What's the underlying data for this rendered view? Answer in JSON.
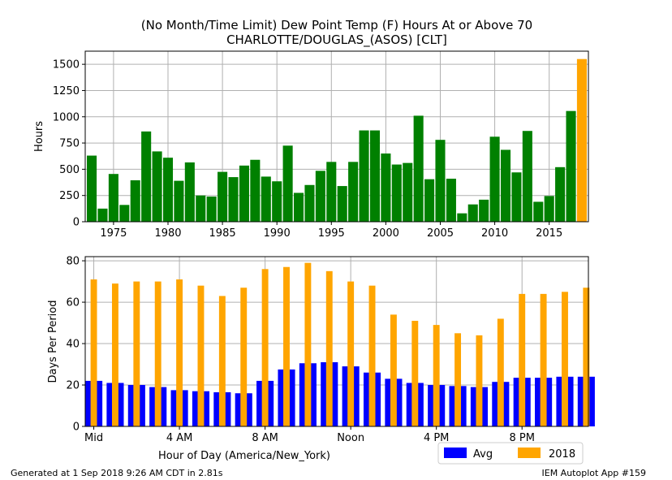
{
  "title_line1": "(No Month/Time Limit) Dew Point Temp (F) Hours At or Above 70",
  "title_line2": "CHARLOTTE/DOUGLAS_(ASOS) [CLT]",
  "footer_left": "Generated at 1 Sep 2018 9:26 AM CDT in 2.81s",
  "footer_right": "IEM Autoplot App #159",
  "colors": {
    "yearly": "#008000",
    "highlight": "#FFA500",
    "avg": "#0000FF",
    "current": "#FFA500",
    "grid": "#b0b0b0"
  },
  "chart_data": [
    {
      "type": "bar",
      "ylabel": "Hours",
      "xlabel": "",
      "ylim": [
        0,
        1625
      ],
      "xlim": [
        1972.4,
        2018.6
      ],
      "grid": true,
      "x_ticks": [
        {
          "value": 1975,
          "label": "1975"
        },
        {
          "value": 1980,
          "label": "1980"
        },
        {
          "value": 1985,
          "label": "1985"
        },
        {
          "value": 1990,
          "label": "1990"
        },
        {
          "value": 1995,
          "label": "1995"
        },
        {
          "value": 2000,
          "label": "2000"
        },
        {
          "value": 2005,
          "label": "2005"
        },
        {
          "value": 2010,
          "label": "2010"
        },
        {
          "value": 2015,
          "label": "2015"
        }
      ],
      "y_ticks": [
        {
          "value": 0,
          "label": "0"
        },
        {
          "value": 250,
          "label": "250"
        },
        {
          "value": 500,
          "label": "500"
        },
        {
          "value": 750,
          "label": "750"
        },
        {
          "value": 1000,
          "label": "1000"
        },
        {
          "value": 1250,
          "label": "1250"
        },
        {
          "value": 1500,
          "label": "1500"
        }
      ],
      "x": [
        1973,
        1974,
        1975,
        1976,
        1977,
        1978,
        1979,
        1980,
        1981,
        1982,
        1983,
        1984,
        1985,
        1986,
        1987,
        1988,
        1989,
        1990,
        1991,
        1992,
        1993,
        1994,
        1995,
        1996,
        1997,
        1998,
        1999,
        2000,
        2001,
        2002,
        2003,
        2004,
        2005,
        2006,
        2007,
        2008,
        2009,
        2010,
        2011,
        2012,
        2013,
        2014,
        2015,
        2016,
        2017,
        2018
      ],
      "values": [
        630,
        125,
        455,
        160,
        395,
        860,
        670,
        610,
        390,
        565,
        250,
        240,
        475,
        425,
        535,
        590,
        430,
        385,
        725,
        275,
        350,
        485,
        570,
        340,
        570,
        870,
        870,
        650,
        545,
        560,
        1010,
        405,
        780,
        410,
        80,
        165,
        210,
        810,
        685,
        470,
        865,
        190,
        245,
        520,
        1055,
        1550
      ],
      "highlight_x": 2018
    },
    {
      "type": "bar",
      "ylabel": "Days Per Period",
      "xlabel": "Hour of Day (America/New_York)",
      "ylim": [
        0,
        82
      ],
      "xlim": [
        -0.4,
        23.1
      ],
      "grid": true,
      "legend_position": "below-right",
      "x_ticks": [
        {
          "value": 0,
          "label": "Mid"
        },
        {
          "value": 4,
          "label": "4 AM"
        },
        {
          "value": 8,
          "label": "8 AM"
        },
        {
          "value": 12,
          "label": "Noon"
        },
        {
          "value": 16,
          "label": "4 PM"
        },
        {
          "value": 20,
          "label": "8 PM"
        }
      ],
      "y_ticks": [
        {
          "value": 0,
          "label": "0"
        },
        {
          "value": 20,
          "label": "20"
        },
        {
          "value": 40,
          "label": "40"
        },
        {
          "value": 60,
          "label": "60"
        },
        {
          "value": 80,
          "label": "80"
        }
      ],
      "x": [
        0,
        1,
        2,
        3,
        4,
        5,
        6,
        7,
        8,
        9,
        10,
        11,
        12,
        13,
        14,
        15,
        16,
        17,
        18,
        19,
        20,
        21,
        22,
        23
      ],
      "series": [
        {
          "name": "Avg",
          "values": [
            22,
            21,
            20,
            19,
            17.5,
            17,
            16.5,
            16,
            22,
            27.5,
            30.5,
            31,
            29,
            26,
            23,
            21,
            20,
            19.5,
            19,
            21.5,
            23.5,
            23.5,
            24,
            24
          ]
        },
        {
          "name": "2018",
          "values": [
            71,
            69,
            70,
            70,
            71,
            68,
            63,
            67,
            76,
            77,
            79,
            75,
            70,
            68,
            54,
            51,
            49,
            45,
            44,
            52,
            64,
            64,
            65,
            67
          ]
        }
      ]
    }
  ]
}
